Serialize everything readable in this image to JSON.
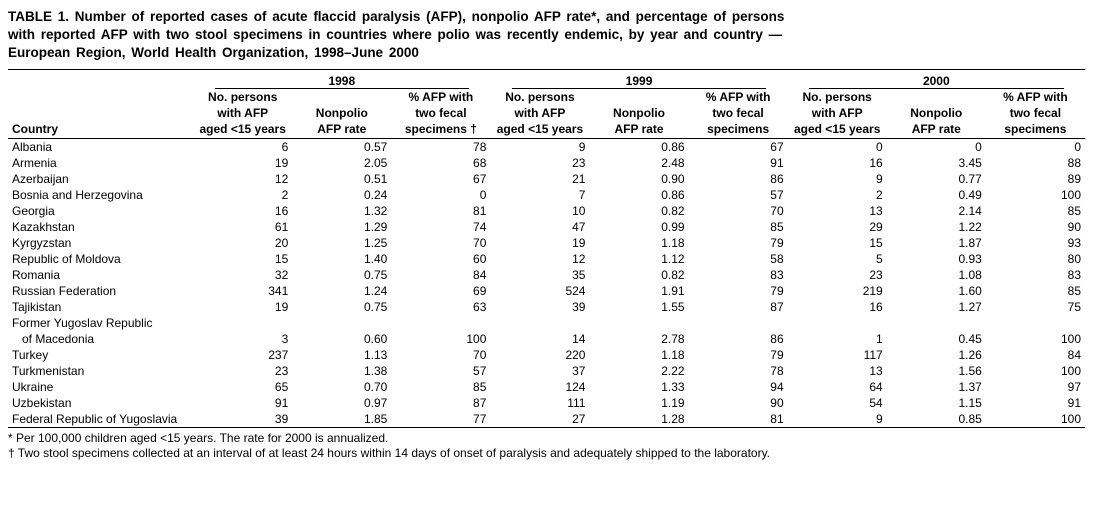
{
  "title_lines": [
    "TABLE 1. Number of reported cases of acute flaccid paralysis (AFP), nonpolio AFP rate*, and percentage of persons",
    "with reported AFP with two stool specimens in countries where polio was recently endemic, by year and country —",
    "European Region, World Health Organization, 1998–June 2000"
  ],
  "years": [
    "1998",
    "1999",
    "2000"
  ],
  "subheads": {
    "country": "Country",
    "c1_l1": "No. persons",
    "c1_l2": "with AFP",
    "c1_l3_a": "aged  <15 years",
    "c1_l3_b": "aged <15 years",
    "c2_l1": "Nonpolio",
    "c2_l2": "AFP rate",
    "c3_l1": "% AFP with",
    "c3_l2": "two fecal",
    "c3_l3_a": "specimens †",
    "c3_l3_b": "specimens"
  },
  "rows": [
    {
      "country": "Albania",
      "v": [
        "6",
        "0.57",
        "78",
        "9",
        "0.86",
        "67",
        "0",
        "0",
        "0"
      ]
    },
    {
      "country": "Armenia",
      "v": [
        "19",
        "2.05",
        "68",
        "23",
        "2.48",
        "91",
        "16",
        "3.45",
        "88"
      ]
    },
    {
      "country": "Azerbaijan",
      "v": [
        "12",
        "0.51",
        "67",
        "21",
        "0.90",
        "86",
        "9",
        "0.77",
        "89"
      ]
    },
    {
      "country": "Bosnia and Herzegovina",
      "v": [
        "2",
        "0.24",
        "0",
        "7",
        "0.86",
        "57",
        "2",
        "0.49",
        "100"
      ]
    },
    {
      "country": "Georgia",
      "v": [
        "16",
        "1.32",
        "81",
        "10",
        "0.82",
        "70",
        "13",
        "2.14",
        "85"
      ]
    },
    {
      "country": "Kazakhstan",
      "v": [
        "61",
        "1.29",
        "74",
        "47",
        "0.99",
        "85",
        "29",
        "1.22",
        "90"
      ]
    },
    {
      "country": "Kyrgyzstan",
      "v": [
        "20",
        "1.25",
        "70",
        "19",
        "1.18",
        "79",
        "15",
        "1.87",
        "93"
      ]
    },
    {
      "country": "Republic of Moldova",
      "v": [
        "15",
        "1.40",
        "60",
        "12",
        "1.12",
        "58",
        "5",
        "0.93",
        "80"
      ]
    },
    {
      "country": "Romania",
      "v": [
        "32",
        "0.75",
        "84",
        "35",
        "0.82",
        "83",
        "23",
        "1.08",
        "83"
      ]
    },
    {
      "country": "Russian Federation",
      "v": [
        "341",
        "1.24",
        "69",
        "524",
        "1.91",
        "79",
        "219",
        "1.60",
        "85"
      ]
    },
    {
      "country": "Tajikistan",
      "v": [
        "19",
        "0.75",
        "63",
        "39",
        "1.55",
        "87",
        "16",
        "1.27",
        "75"
      ]
    },
    {
      "country": "Former Yugoslav Republic",
      "v": [
        "",
        "",
        "",
        "",
        "",
        "",
        "",
        "",
        ""
      ],
      "noData": true
    },
    {
      "country": "of Macedonia",
      "indent": true,
      "v": [
        "3",
        "0.60",
        "100",
        "14",
        "2.78",
        "86",
        "1",
        "0.45",
        "100"
      ]
    },
    {
      "country": "Turkey",
      "v": [
        "237",
        "1.13",
        "70",
        "220",
        "1.18",
        "79",
        "117",
        "1.26",
        "84"
      ]
    },
    {
      "country": "Turkmenistan",
      "v": [
        "23",
        "1.38",
        "57",
        "37",
        "2.22",
        "78",
        "13",
        "1.56",
        "100"
      ]
    },
    {
      "country": "Ukraine",
      "v": [
        "65",
        "0.70",
        "85",
        "124",
        "1.33",
        "94",
        "64",
        "1.37",
        "97"
      ]
    },
    {
      "country": "Uzbekistan",
      "v": [
        "91",
        "0.97",
        "87",
        "111",
        "1.19",
        "90",
        "54",
        "1.15",
        "91"
      ]
    },
    {
      "country": "Federal Republic of Yugoslavia",
      "v": [
        "39",
        "1.85",
        "77",
        "27",
        "1.28",
        "81",
        "9",
        "0.85",
        "100"
      ]
    }
  ],
  "footnotes": [
    "* Per 100,000 children aged <15 years. The rate for 2000 is annualized.",
    "† Two stool specimens collected at an interval of at least 24 hours within 14 days of onset of paralysis and adequately shipped to the laboratory."
  ]
}
